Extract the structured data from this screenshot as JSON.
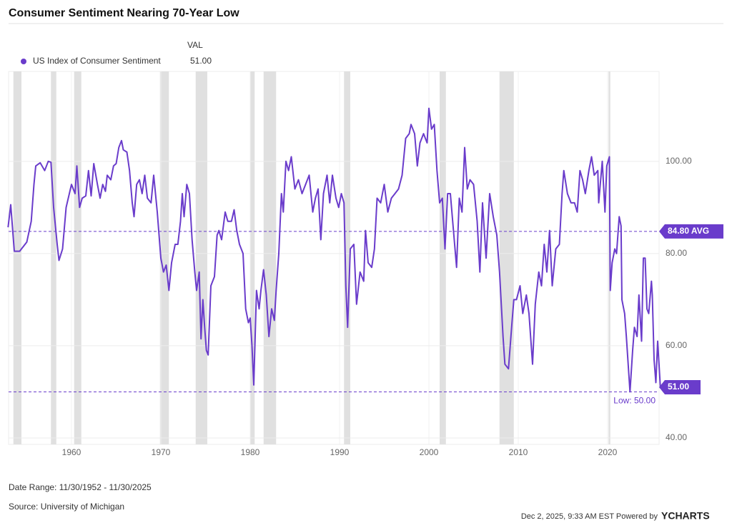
{
  "chart_data": {
    "type": "line",
    "title": "Consumer Sentiment Nearing 70-Year Low",
    "legend_header": "VAL",
    "x": [
      1952.9,
      1953.2,
      1953.6,
      1954.2,
      1955.0,
      1955.5,
      1955.8,
      1956.0,
      1956.5,
      1957.0,
      1957.4,
      1957.7,
      1958.0,
      1958.4,
      1958.6,
      1959.0,
      1959.4,
      1960.0,
      1960.4,
      1960.6,
      1960.9,
      1961.2,
      1961.6,
      1961.9,
      1962.2,
      1962.5,
      1962.9,
      1963.2,
      1963.5,
      1963.8,
      1964.0,
      1964.4,
      1964.7,
      1965.0,
      1965.3,
      1965.6,
      1965.8,
      1966.2,
      1966.5,
      1966.8,
      1967.0,
      1967.3,
      1967.6,
      1967.9,
      1968.2,
      1968.5,
      1968.9,
      1969.2,
      1969.6,
      1970.0,
      1970.3,
      1970.6,
      1970.9,
      1971.2,
      1971.6,
      1971.9,
      1972.2,
      1972.4,
      1972.6,
      1972.9,
      1973.2,
      1973.5,
      1973.8,
      1974.0,
      1974.3,
      1974.5,
      1974.7,
      1974.9,
      1975.1,
      1975.3,
      1975.6,
      1976.0,
      1976.3,
      1976.5,
      1976.8,
      1977.2,
      1977.5,
      1977.9,
      1978.2,
      1978.5,
      1978.8,
      1979.2,
      1979.5,
      1979.8,
      1980.0,
      1980.2,
      1980.4,
      1980.7,
      1981.0,
      1981.2,
      1981.5,
      1981.8,
      1982.1,
      1982.4,
      1982.7,
      1982.9,
      1983.2,
      1983.5,
      1983.7,
      1984.0,
      1984.3,
      1984.6,
      1985.0,
      1985.4,
      1985.8,
      1986.2,
      1986.6,
      1987.0,
      1987.3,
      1987.6,
      1987.9,
      1988.2,
      1988.6,
      1988.9,
      1989.2,
      1989.6,
      1989.9,
      1990.2,
      1990.5,
      1990.7,
      1990.9,
      1991.2,
      1991.6,
      1991.9,
      1992.3,
      1992.7,
      1992.9,
      1993.2,
      1993.6,
      1993.9,
      1994.2,
      1994.6,
      1995.0,
      1995.4,
      1995.8,
      1996.2,
      1996.6,
      1997.0,
      1997.4,
      1997.8,
      1998.0,
      1998.4,
      1998.7,
      1999.0,
      1999.4,
      1999.8,
      2000.0,
      2000.3,
      2000.6,
      2000.9,
      2001.2,
      2001.5,
      2001.8,
      2002.1,
      2002.4,
      2002.7,
      2003.1,
      2003.4,
      2003.7,
      2004.0,
      2004.3,
      2004.6,
      2005.0,
      2005.4,
      2005.7,
      2006.0,
      2006.4,
      2006.8,
      2007.2,
      2007.6,
      2007.9,
      2008.3,
      2008.5,
      2008.9,
      2009.3,
      2009.5,
      2009.8,
      2010.2,
      2010.5,
      2010.9,
      2011.2,
      2011.6,
      2011.9,
      2012.3,
      2012.6,
      2012.9,
      2013.2,
      2013.5,
      2013.8,
      2014.2,
      2014.6,
      2014.9,
      2015.1,
      2015.5,
      2015.9,
      2016.3,
      2016.6,
      2016.9,
      2017.2,
      2017.5,
      2017.9,
      2018.2,
      2018.5,
      2018.9,
      2019.0,
      2019.4,
      2019.7,
      2019.9,
      2020.2,
      2020.3,
      2020.5,
      2020.8,
      2021.0,
      2021.3,
      2021.5,
      2021.6,
      2021.9,
      2022.1,
      2022.5,
      2022.8,
      2023.0,
      2023.3,
      2023.5,
      2023.8,
      2024.0,
      2024.2,
      2024.4,
      2024.6,
      2024.9,
      2025.0,
      2025.2,
      2025.4,
      2025.6,
      2025.9
    ],
    "series": [
      {
        "name": "US Index of Consumer Sentiment",
        "color": "#6a3ccb",
        "values": [
          85.7,
          90.6,
          80.5,
          80.5,
          82.5,
          87,
          95,
          99,
          99.7,
          98,
          100,
          99.8,
          90,
          82,
          78.5,
          81,
          90,
          95,
          93,
          99,
          90,
          92,
          92.5,
          98,
          92.5,
          99.5,
          95,
          92,
          95,
          93.5,
          97,
          96,
          99,
          99.5,
          103,
          104.5,
          102.5,
          102,
          98,
          91,
          88,
          95,
          96,
          93,
          97,
          92,
          91,
          97,
          89,
          79,
          76,
          77.5,
          72,
          78,
          82,
          82,
          87,
          93,
          88,
          95,
          93,
          83,
          76,
          72,
          76,
          61.5,
          70,
          64,
          59,
          58,
          73,
          75,
          84,
          85,
          83,
          89,
          87,
          87,
          89.5,
          85,
          82,
          80,
          68,
          65,
          66,
          60,
          51.5,
          72,
          68,
          72,
          76.5,
          71,
          62,
          68,
          65.5,
          72,
          80,
          93,
          89,
          100,
          98,
          101,
          94,
          96,
          93,
          95,
          97,
          89,
          92,
          94,
          83,
          93,
          97,
          91,
          97,
          92,
          90,
          93,
          91,
          73,
          64,
          81,
          82,
          69,
          76,
          74,
          85,
          78,
          77,
          81,
          92,
          91,
          95,
          89,
          92,
          93,
          94,
          97,
          105,
          106,
          108,
          106,
          99,
          104,
          106,
          104,
          111.5,
          107,
          108,
          98,
          91,
          92,
          81,
          93,
          93,
          86,
          77,
          92,
          89,
          103,
          94,
          96,
          95,
          87,
          76,
          91,
          79,
          93,
          88,
          84,
          76,
          62,
          56,
          55,
          65,
          70,
          70,
          73,
          67,
          71,
          67,
          56,
          69,
          76,
          73,
          82,
          76,
          85,
          73,
          81,
          82,
          93,
          98,
          93,
          91,
          91,
          89,
          98,
          96,
          93,
          98,
          101,
          97,
          98,
          91,
          100,
          89,
          99,
          101,
          72,
          78,
          81,
          80,
          88,
          86,
          70,
          67,
          62,
          50,
          59,
          64,
          62,
          71,
          61,
          79,
          79,
          68,
          67,
          74,
          71,
          57,
          52,
          61,
          51
        ]
      }
    ],
    "recessions": [
      [
        1953.5,
        1954.4
      ],
      [
        1957.7,
        1958.3
      ],
      [
        1960.3,
        1961.1
      ],
      [
        1969.9,
        1970.9
      ],
      [
        1973.9,
        1975.2
      ],
      [
        1980.0,
        1980.5
      ],
      [
        1981.5,
        1982.9
      ],
      [
        1990.5,
        1991.2
      ],
      [
        2001.2,
        2001.9
      ],
      [
        2007.9,
        2009.5
      ],
      [
        2020.1,
        2020.3
      ]
    ],
    "xlim": [
      1952.96,
      2025.76
    ],
    "ylim": [
      38.6,
      119.5
    ],
    "xticks": [
      1960,
      1970,
      1980,
      1990,
      2000,
      2010,
      2020
    ],
    "yticks": [
      {
        "value": 40,
        "label": "40.00"
      },
      {
        "value": 60,
        "label": "60.00"
      },
      {
        "value": 80,
        "label": "80.00"
      },
      {
        "value": 100,
        "label": "100.00"
      }
    ],
    "grid": true,
    "average": {
      "value": 84.8,
      "label": "84.80 AVG"
    },
    "low": {
      "value": 50,
      "label": "Low: 50.00"
    },
    "latest": {
      "value": 51,
      "label": "51.00"
    },
    "date_range": "Date Range: 11/30/1952 - 11/30/2025",
    "source": "Source: University of Michigan",
    "timestamp": "Dec 2, 2025, 9:33 AM EST Powered by",
    "brand": "YCHARTS"
  }
}
